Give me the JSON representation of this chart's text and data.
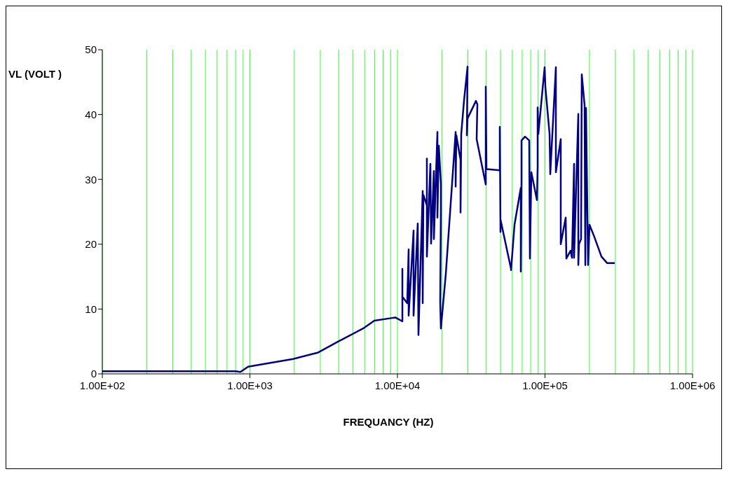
{
  "chart_data": {
    "type": "line",
    "xlabel": "FREQUANCY (HZ)",
    "ylabel": "VL (VOLT )",
    "log": "x",
    "grid": "x",
    "marker": "none",
    "line_style": "solid",
    "xlim": [
      100,
      1000000
    ],
    "ylim": [
      0,
      50
    ],
    "yticks": [
      0,
      10,
      20,
      30,
      40,
      50
    ],
    "xticks": [
      {
        "value": 100,
        "label": "1.00E+02"
      },
      {
        "value": 200,
        "label": null
      },
      {
        "value": 300,
        "label": null
      },
      {
        "value": 400,
        "label": null
      },
      {
        "value": 500,
        "label": null
      },
      {
        "value": 600,
        "label": null
      },
      {
        "value": 700,
        "label": null
      },
      {
        "value": 800,
        "label": null
      },
      {
        "value": 900,
        "label": null
      },
      {
        "value": 1000,
        "label": "1.00E+03"
      },
      {
        "value": 2000,
        "label": null
      },
      {
        "value": 3000,
        "label": null
      },
      {
        "value": 4000,
        "label": null
      },
      {
        "value": 5000,
        "label": null
      },
      {
        "value": 6000,
        "label": null
      },
      {
        "value": 7000,
        "label": null
      },
      {
        "value": 8000,
        "label": null
      },
      {
        "value": 9000,
        "label": null
      },
      {
        "value": 10000,
        "label": "1.00E+04"
      },
      {
        "value": 20000,
        "label": null
      },
      {
        "value": 30000,
        "label": null
      },
      {
        "value": 40000,
        "label": null
      },
      {
        "value": 50000,
        "label": null
      },
      {
        "value": 60000,
        "label": null
      },
      {
        "value": 70000,
        "label": null
      },
      {
        "value": 80000,
        "label": null
      },
      {
        "value": 90000,
        "label": null
      },
      {
        "value": 100000,
        "label": "1.00E+05"
      },
      {
        "value": 200000,
        "label": null
      },
      {
        "value": 300000,
        "label": null
      },
      {
        "value": 400000,
        "label": null
      },
      {
        "value": 500000,
        "label": null
      },
      {
        "value": 600000,
        "label": null
      },
      {
        "value": 700000,
        "label": null
      },
      {
        "value": 800000,
        "label": null
      },
      {
        "value": 900000,
        "label": null
      },
      {
        "value": 1000000,
        "label": "1.00E+06"
      }
    ],
    "series": [
      {
        "color": "#000080",
        "x": [
          100,
          800,
          862,
          973,
          1960,
          2905,
          3900,
          5850,
          6970,
          9060,
          9680,
          10800,
          10800,
          10800,
          11650,
          11910,
          11910,
          12860,
          12860,
          13730,
          13880,
          14830,
          14830,
          14990,
          15830,
          15830,
          15830,
          16720,
          16900,
          17660,
          17660,
          18660,
          18660,
          19070,
          19700,
          19700,
          19490,
          19700,
          21270,
          24800,
          24800,
          25060,
          26770,
          26770,
          27060,
          28280,
          29870,
          29540,
          29870,
          34050,
          34800,
          34420,
          39680,
          39680,
          40110,
          49390,
          49390,
          49930,
          49930,
          58850,
          58850,
          62150,
          68560,
          68560,
          69320,
          69320,
          73200,
          78170,
          79040,
          80800,
          88200,
          89160,
          89160,
          90140,
          99450,
          100550,
          107400,
          108550,
          118500,
          118500,
          127900,
          127900,
          138100,
          139600,
          149000,
          152400,
          157400,
          157400,
          168200,
          168200,
          170000,
          175600,
          177500,
          185500,
          187600,
          189600,
          195900,
          200300,
          216200,
          241200,
          263300,
          297000
        ],
        "values": [
          0.4,
          0.4,
          0.3,
          1.1,
          2.3,
          3.3,
          4.9,
          7.0,
          8.2,
          8.6,
          8.7,
          8.1,
          16.2,
          11.9,
          10.9,
          19.2,
          9.0,
          22.1,
          9.0,
          23.2,
          6.0,
          28.2,
          10.9,
          27.6,
          26.0,
          33.2,
          18.1,
          32.4,
          20.1,
          31.3,
          20.8,
          37.3,
          24.1,
          35.2,
          29.3,
          25.2,
          11.1,
          7.0,
          15.4,
          37.3,
          28.9,
          36.8,
          33.0,
          24.9,
          37.0,
          42.2,
          47.4,
          36.8,
          39.4,
          42.1,
          41.6,
          36.2,
          29.2,
          44.3,
          31.6,
          31.4,
          38.1,
          21.9,
          23.8,
          16.2,
          16.0,
          23.0,
          28.7,
          15.8,
          29.8,
          36.0,
          36.6,
          36.0,
          17.8,
          31.1,
          26.8,
          32.0,
          41.1,
          37.0,
          47.3,
          44.3,
          37.0,
          30.8,
          47.3,
          31.1,
          36.2,
          20.0,
          24.1,
          17.8,
          19.0,
          17.9,
          32.4,
          17.9,
          40.1,
          16.8,
          20.0,
          20.8,
          46.2,
          41.4,
          16.8,
          41.0,
          16.8,
          23.0,
          21.1,
          18.1,
          17.1,
          17.1
        ]
      }
    ]
  }
}
